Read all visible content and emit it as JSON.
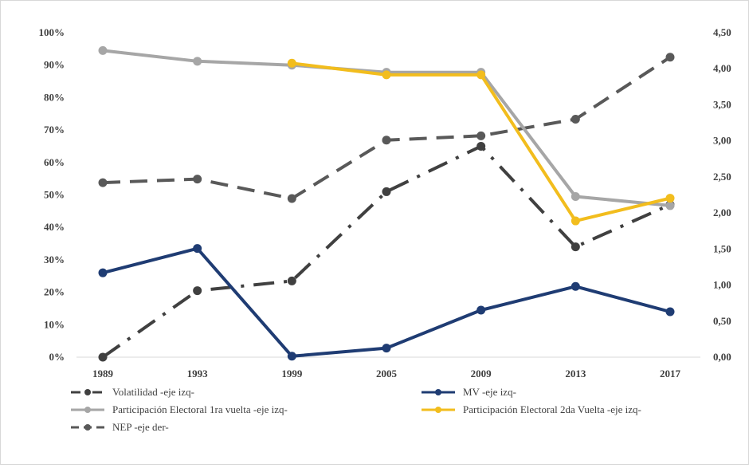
{
  "chart_data": {
    "type": "line",
    "title": "",
    "xlabel": "",
    "ylabel": "",
    "categories": [
      "1989",
      "1993",
      "1999",
      "2005",
      "2009",
      "2013",
      "2017"
    ],
    "y_left": {
      "min": 0,
      "max": 100,
      "ticks": [
        0,
        10,
        20,
        30,
        40,
        50,
        60,
        70,
        80,
        90,
        100
      ],
      "tick_labels": [
        "0%",
        "10%",
        "20%",
        "30%",
        "40%",
        "50%",
        "60%",
        "70%",
        "80%",
        "90%",
        "100%"
      ]
    },
    "y_right": {
      "min": 0,
      "max": 4.5,
      "ticks": [
        0,
        0.5,
        1,
        1.5,
        2,
        2.5,
        3,
        3.5,
        4,
        4.5
      ],
      "tick_labels": [
        "0,00",
        "0,50",
        "1,00",
        "1,50",
        "2,00",
        "2,50",
        "3,00",
        "3,50",
        "4,00",
        "4,50"
      ]
    },
    "grid": false,
    "legend_position": "bottom",
    "series": [
      {
        "key": "volatilidad",
        "name": "Volatilidad -eje izq-",
        "axis": "left",
        "color": "#404040",
        "dash": "dashdot",
        "values": [
          0,
          20.5,
          23.5,
          51,
          65,
          34,
          47
        ]
      },
      {
        "key": "mv",
        "name": "MV -eje izq-",
        "axis": "left",
        "color": "#1f3c73",
        "dash": "solid",
        "values": [
          26,
          33.5,
          0.3,
          2.8,
          14.5,
          21.8,
          14
        ]
      },
      {
        "key": "part1",
        "name": "Participación Electoral 1ra vuelta -eje izq-",
        "axis": "left",
        "color": "#a6a6a6",
        "dash": "solid",
        "values": [
          94.5,
          91.2,
          90,
          87.8,
          87.8,
          49.5,
          46.7
        ]
      },
      {
        "key": "part2",
        "name": "Participación Electoral 2da Vuelta -eje izq-",
        "axis": "left",
        "color": "#f2bd1d",
        "dash": "solid",
        "values": [
          null,
          null,
          90.6,
          87,
          87,
          42,
          49
        ]
      },
      {
        "key": "nep",
        "name": "NEP -eje der-",
        "axis": "right",
        "color": "#595959",
        "dash": "dash",
        "values": [
          2.42,
          2.47,
          2.2,
          3.01,
          3.07,
          3.3,
          4.16
        ]
      }
    ]
  }
}
